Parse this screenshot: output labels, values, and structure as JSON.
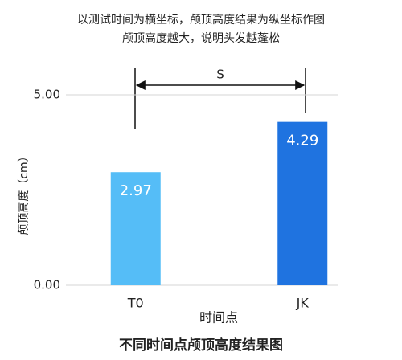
{
  "chart_data": {
    "type": "bar",
    "title": "以测试时间为横坐标，颅顶高度结果为纵坐标作图",
    "subtitle": "颅顶高度越大，说明头发越蓬松",
    "caption": "不同时间点颅顶高度结果图",
    "ylabel": "颅顶高度（cm）",
    "xlabel": "时间点",
    "annotation": "S",
    "categories": [
      "T0",
      "JK"
    ],
    "values": [
      2.97,
      4.29
    ],
    "colors": [
      "#55bdf7",
      "#1f73e0"
    ],
    "ylim": [
      0,
      5
    ],
    "yticks": [
      {
        "value": 0,
        "label": "0.00"
      },
      {
        "value": 5,
        "label": "5.00"
      }
    ],
    "grid": true
  }
}
